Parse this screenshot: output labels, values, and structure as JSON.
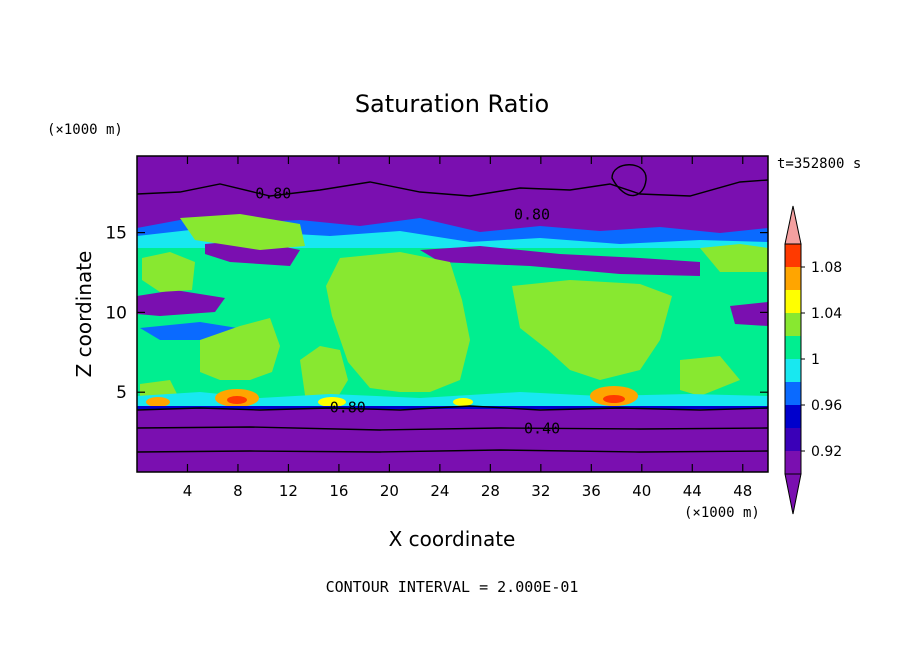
{
  "chart_data": {
    "type": "heatmap",
    "title": "Saturation Ratio",
    "xlabel": "X coordinate",
    "ylabel": "Z coordinate",
    "x_unit_label": "(×1000 m)",
    "y_unit_label": "(×1000 m)",
    "time_label": "t=352800 s",
    "contour_interval_label": "CONTOUR INTERVAL = 2.000E-01",
    "xlim": [
      0,
      50
    ],
    "ylim": [
      0,
      19.8
    ],
    "x_ticks": [
      4,
      8,
      12,
      16,
      20,
      24,
      28,
      32,
      36,
      40,
      44,
      48
    ],
    "x_tick_labels": [
      "4",
      "8",
      "12",
      "16",
      "20",
      "24",
      "28",
      "32",
      "36",
      "40",
      "44",
      "48"
    ],
    "y_ticks": [
      5,
      10,
      15
    ],
    "y_tick_labels": [
      "5",
      "10",
      "15"
    ],
    "colorbar": {
      "bounds": [
        0.9,
        0.92,
        0.94,
        0.96,
        0.98,
        1.0,
        1.02,
        1.04,
        1.06,
        1.08,
        1.1
      ],
      "colors": [
        "#7a0fb0",
        "#3a00b8",
        "#0000cc",
        "#0a6aff",
        "#18e8f0",
        "#00ee90",
        "#88e830",
        "#ffff00",
        "#ffa500",
        "#ff3a00",
        "#ff0000"
      ],
      "under_color": "#7a0fb0",
      "over_color": "#f4a0a0",
      "tick_values": [
        0.92,
        0.96,
        1.0,
        1.04,
        1.08
      ],
      "tick_labels": [
        "0.92",
        "0.96",
        "1",
        "1.04",
        "1.08"
      ]
    },
    "contour_labels": [
      {
        "text": "0.80",
        "x": 10.8,
        "y": 17.5
      },
      {
        "text": "0.80",
        "x": 31.3,
        "y": 16.2
      },
      {
        "text": "0.80",
        "x": 16.7,
        "y": 4.1
      },
      {
        "text": "0.40",
        "x": 32.1,
        "y": 2.8
      }
    ]
  }
}
